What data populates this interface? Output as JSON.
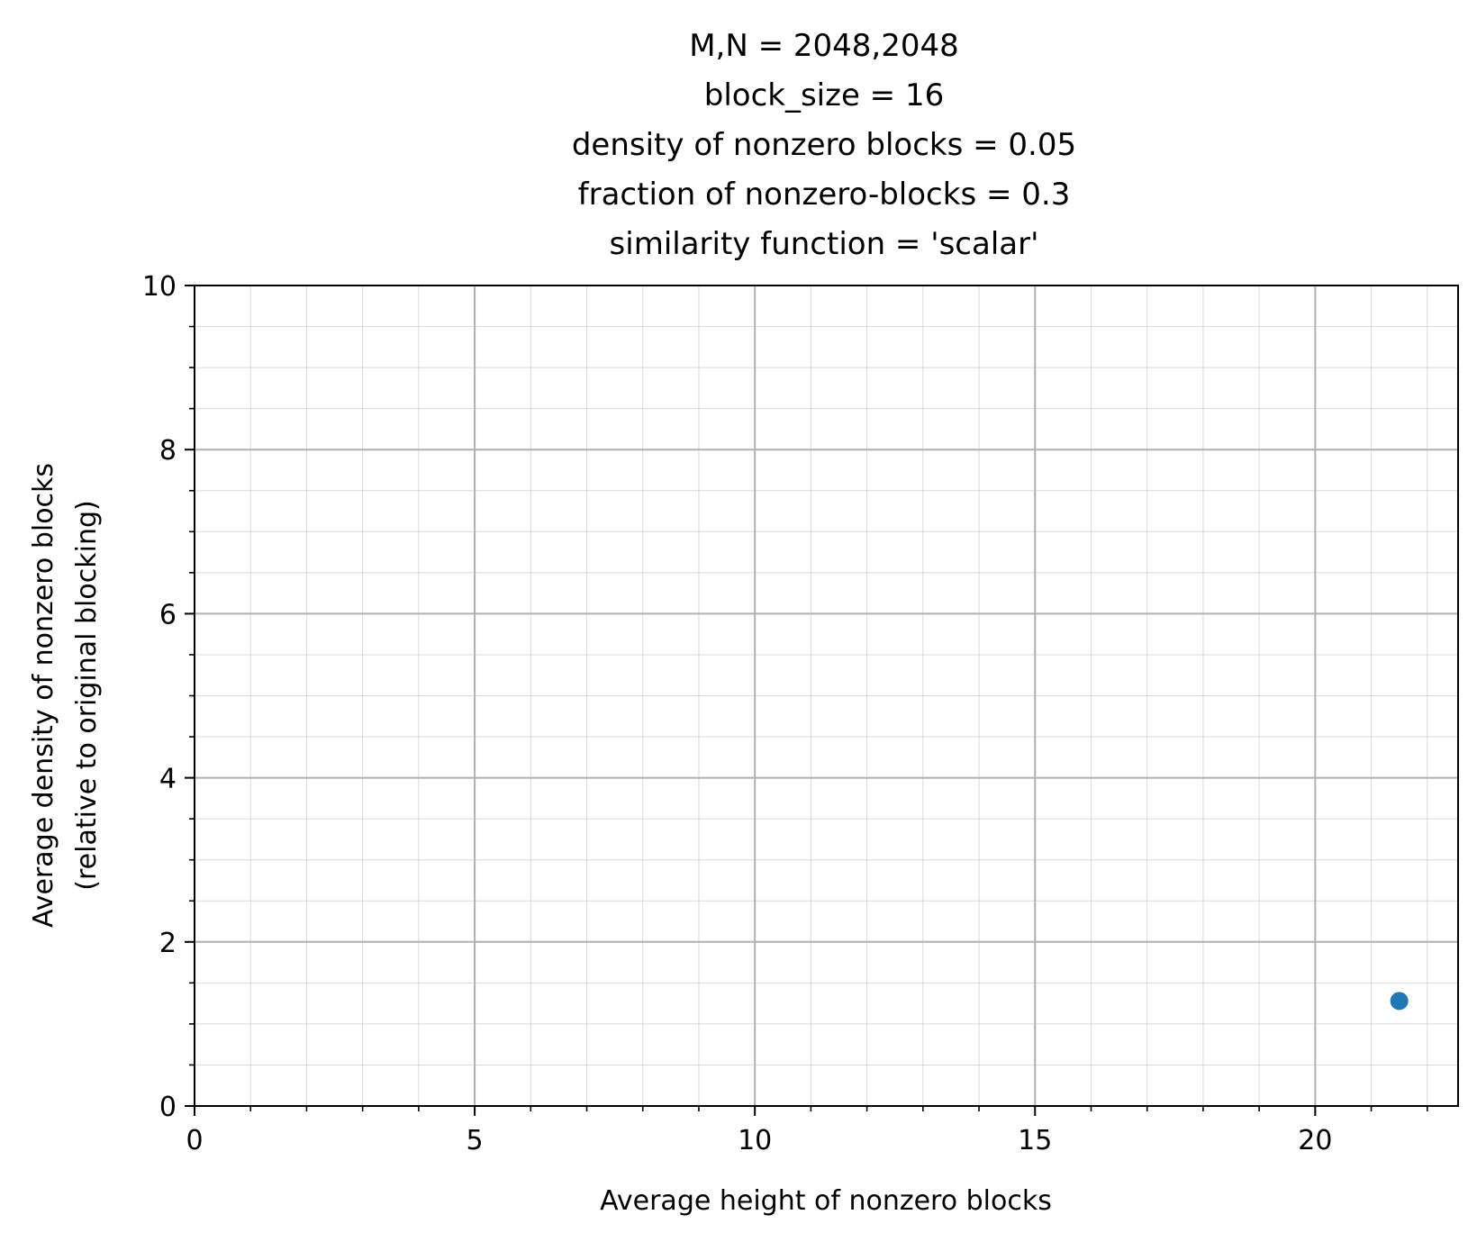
{
  "chart_data": {
    "type": "scatter",
    "title_lines": [
      "M,N = 2048,2048",
      "block_size = 16",
      "density of nonzero blocks = 0.05",
      "fraction of nonzero-blocks = 0.3",
      "similarity function = 'scalar'"
    ],
    "xlabel": "Average height of nonzero blocks",
    "ylabel_lines": [
      "Average density of nonzero blocks",
      "(relative to original blocking)"
    ],
    "xlim": [
      0,
      22.55
    ],
    "ylim": [
      0,
      10
    ],
    "xticks": [
      0,
      5,
      10,
      15,
      20
    ],
    "xtick_labels": [
      "0",
      "5",
      "10",
      "15",
      "20"
    ],
    "yticks": [
      0,
      2,
      4,
      6,
      8,
      10
    ],
    "ytick_labels": [
      "0",
      "2",
      "4",
      "6",
      "8",
      "10"
    ],
    "x_minor_step": 1,
    "y_minor_step": 0.5,
    "grid": true,
    "minor_grid": true,
    "legend": "none",
    "series": [
      {
        "color": "#1f77b4",
        "points": [
          {
            "x": 21.5,
            "y": 1.28
          }
        ]
      }
    ]
  }
}
